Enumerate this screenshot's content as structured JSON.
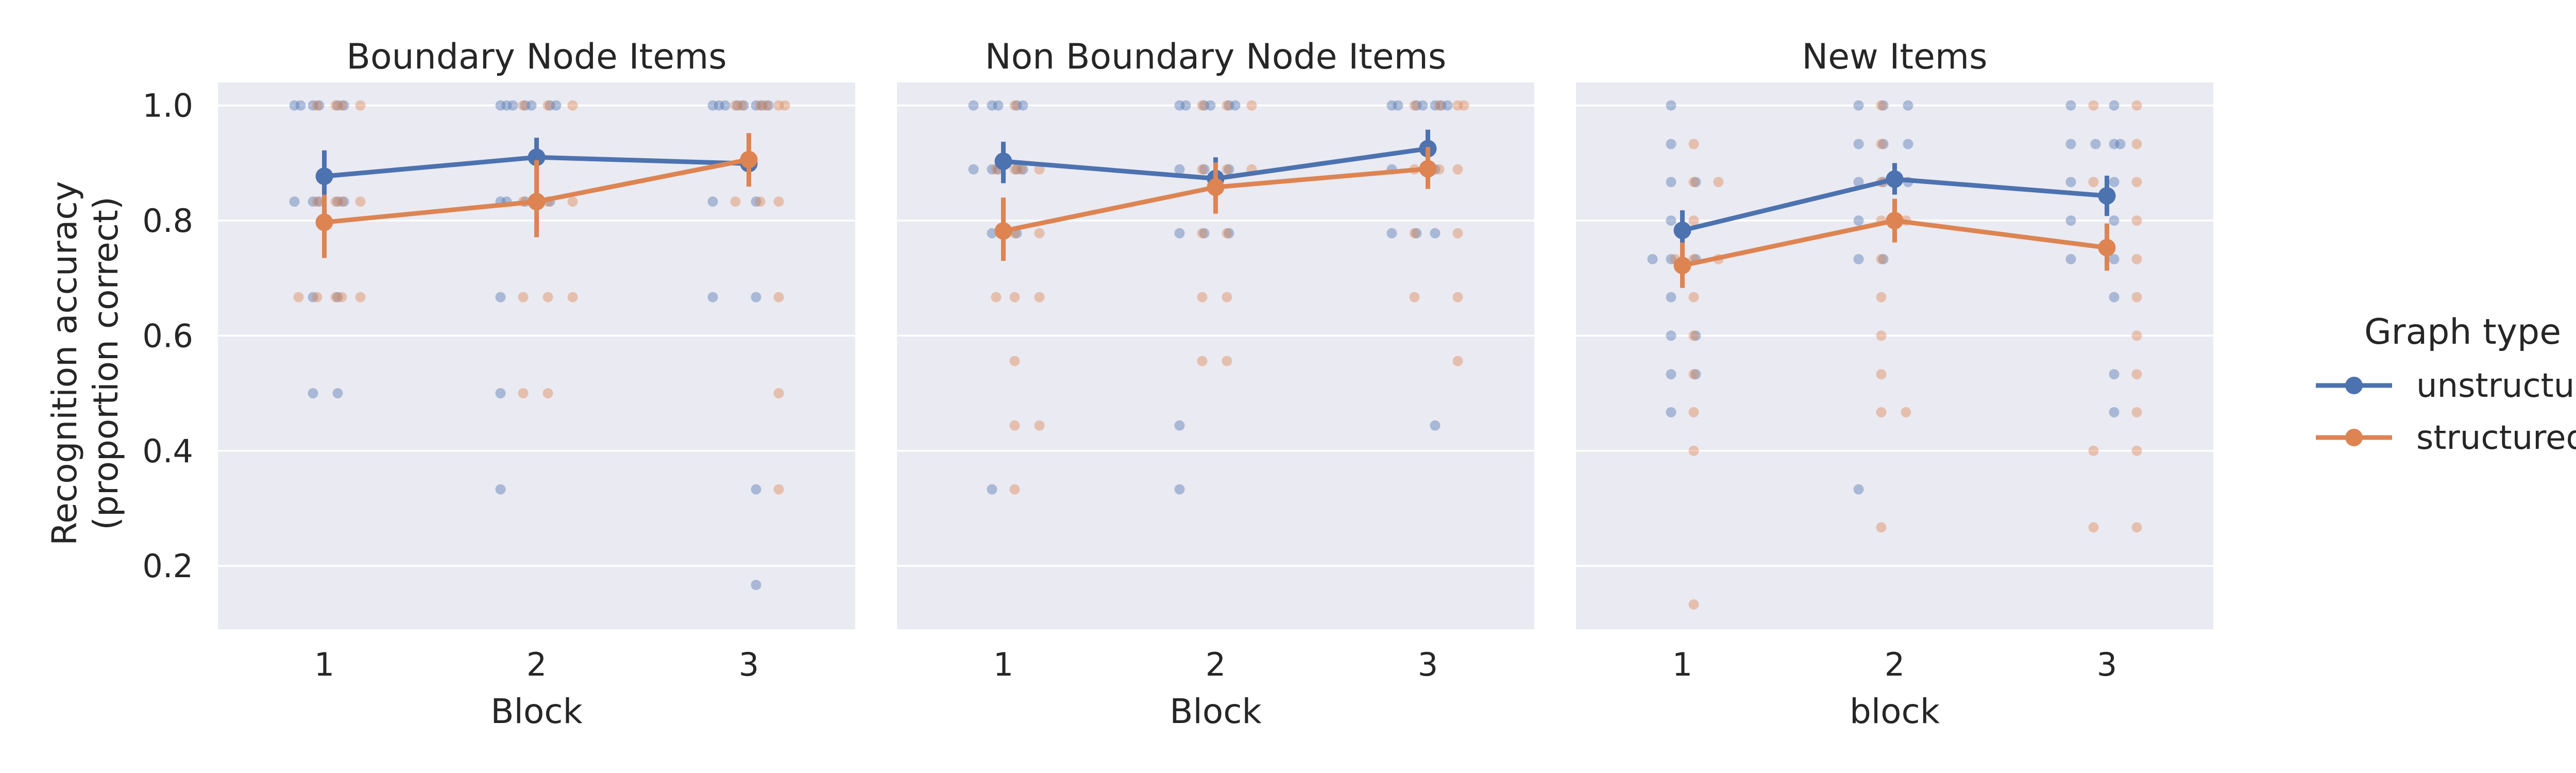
{
  "chart_data": [
    {
      "type": "scatter",
      "title": "Boundary Node Items",
      "xlabel": "Block",
      "ylabel": "Recognition accuracy\n(proportion correct)",
      "x_categories": [
        "1",
        "2",
        "3"
      ],
      "ylim": [
        0.09,
        1.04
      ],
      "yticks": [
        "0.2",
        "0.4",
        "0.6",
        "0.8",
        "1.0"
      ],
      "grid": true,
      "series": [
        {
          "name": "unstructured",
          "color": "#4C72B0",
          "means": [
            0.877,
            0.91,
            0.899
          ],
          "ci": [
            [
              0.833,
              0.922
            ],
            [
              0.876,
              0.944
            ],
            [
              0.862,
              0.93
            ]
          ],
          "points": [
            {
              "x": 1,
              "ys": [
                1.0,
                1.0,
                1.0,
                1.0,
                1.0,
                1.0,
                0.833,
                0.833,
                0.833,
                0.833,
                0.833,
                0.667,
                0.667,
                0.5,
                0.5
              ]
            },
            {
              "x": 2,
              "ys": [
                1.0,
                1.0,
                1.0,
                1.0,
                1.0,
                1.0,
                1.0,
                0.833,
                0.833,
                0.833,
                0.833,
                0.667,
                0.5,
                0.333
              ]
            },
            {
              "x": 3,
              "ys": [
                1.0,
                1.0,
                1.0,
                1.0,
                1.0,
                1.0,
                1.0,
                1.0,
                0.833,
                0.833,
                0.667,
                0.667,
                0.333,
                0.167
              ]
            }
          ]
        },
        {
          "name": "structured",
          "color": "#DD8452",
          "means": [
            0.797,
            0.833,
            0.906
          ],
          "ci": [
            [
              0.735,
              0.845
            ],
            [
              0.771,
              0.905
            ],
            [
              0.859,
              0.952
            ]
          ],
          "points": [
            {
              "x": 1,
              "ys": [
                1.0,
                1.0,
                1.0,
                1.0,
                0.833,
                0.833,
                0.833,
                0.833,
                0.667,
                0.667,
                0.667,
                0.667,
                0.667
              ]
            },
            {
              "x": 2,
              "ys": [
                1.0,
                1.0,
                1.0,
                0.833,
                0.833,
                0.833,
                0.667,
                0.667,
                0.667,
                0.5,
                0.5
              ]
            },
            {
              "x": 3,
              "ys": [
                1.0,
                1.0,
                1.0,
                1.0,
                1.0,
                1.0,
                0.833,
                0.833,
                0.833,
                0.667,
                0.5,
                0.333
              ]
            }
          ]
        }
      ]
    },
    {
      "type": "scatter",
      "title": "Non Boundary Node Items",
      "xlabel": "Block",
      "ylabel": "",
      "x_categories": [
        "1",
        "2",
        "3"
      ],
      "ylim": [
        0.09,
        1.04
      ],
      "grid": true,
      "series": [
        {
          "name": "unstructured",
          "color": "#4C72B0",
          "means": [
            0.903,
            0.873,
            0.925
          ],
          "ci": [
            [
              0.865,
              0.937
            ],
            [
              0.835,
              0.91
            ],
            [
              0.892,
              0.958
            ]
          ],
          "points": [
            {
              "x": 1,
              "ys": [
                1.0,
                1.0,
                1.0,
                1.0,
                1.0,
                0.889,
                0.889,
                0.889,
                0.889,
                0.889,
                0.778,
                0.778,
                0.333
              ]
            },
            {
              "x": 2,
              "ys": [
                1.0,
                1.0,
                1.0,
                1.0,
                1.0,
                1.0,
                0.889,
                0.889,
                0.889,
                0.778,
                0.778,
                0.778,
                0.444,
                0.333
              ]
            },
            {
              "x": 3,
              "ys": [
                1.0,
                1.0,
                1.0,
                1.0,
                1.0,
                1.0,
                1.0,
                0.889,
                0.889,
                0.778,
                0.778,
                0.778,
                0.444
              ]
            }
          ]
        },
        {
          "name": "structured",
          "color": "#DD8452",
          "means": [
            0.782,
            0.858,
            0.89
          ],
          "ci": [
            [
              0.73,
              0.84
            ],
            [
              0.812,
              0.901
            ],
            [
              0.855,
              0.928
            ]
          ],
          "points": [
            {
              "x": 1,
              "ys": [
                1.0,
                0.889,
                0.889,
                0.889,
                0.889,
                0.778,
                0.778,
                0.667,
                0.667,
                0.667,
                0.556,
                0.444,
                0.444,
                0.333
              ]
            },
            {
              "x": 2,
              "ys": [
                1.0,
                1.0,
                1.0,
                0.889,
                0.889,
                0.889,
                0.778,
                0.778,
                0.667,
                0.667,
                0.556,
                0.556
              ]
            },
            {
              "x": 3,
              "ys": [
                1.0,
                1.0,
                1.0,
                1.0,
                0.889,
                0.889,
                0.889,
                0.778,
                0.778,
                0.667,
                0.667,
                0.556
              ]
            }
          ]
        }
      ]
    },
    {
      "type": "scatter",
      "title": "New Items",
      "xlabel": "block",
      "ylabel": "",
      "x_categories": [
        "1",
        "2",
        "3"
      ],
      "ylim": [
        0.09,
        1.04
      ],
      "grid": true,
      "series": [
        {
          "name": "unstructured",
          "color": "#4C72B0",
          "means": [
            0.783,
            0.872,
            0.843
          ],
          "ci": [
            [
              0.748,
              0.818
            ],
            [
              0.845,
              0.9
            ],
            [
              0.808,
              0.878
            ]
          ],
          "points": [
            {
              "x": 1,
              "ys": [
                1.0,
                0.933,
                0.867,
                0.867,
                0.8,
                0.733,
                0.733,
                0.733,
                0.667,
                0.6,
                0.6,
                0.533,
                0.533,
                0.467
              ]
            },
            {
              "x": 2,
              "ys": [
                1.0,
                1.0,
                1.0,
                0.933,
                0.933,
                0.933,
                0.867,
                0.867,
                0.867,
                0.8,
                0.733,
                0.733,
                0.333
              ]
            },
            {
              "x": 3,
              "ys": [
                1.0,
                1.0,
                0.933,
                0.933,
                0.933,
                0.933,
                0.867,
                0.867,
                0.8,
                0.8,
                0.733,
                0.733,
                0.667,
                0.533,
                0.467
              ]
            }
          ]
        },
        {
          "name": "structured",
          "color": "#DD8452",
          "means": [
            0.722,
            0.8,
            0.753
          ],
          "ci": [
            [
              0.683,
              0.762
            ],
            [
              0.762,
              0.838
            ],
            [
              0.713,
              0.795
            ]
          ],
          "points": [
            {
              "x": 1,
              "ys": [
                0.933,
                0.867,
                0.867,
                0.8,
                0.733,
                0.733,
                0.733,
                0.667,
                0.6,
                0.533,
                0.467,
                0.4,
                0.133
              ]
            },
            {
              "x": 2,
              "ys": [
                1.0,
                0.933,
                0.867,
                0.8,
                0.8,
                0.733,
                0.667,
                0.6,
                0.533,
                0.467,
                0.467,
                0.267
              ]
            },
            {
              "x": 3,
              "ys": [
                1.0,
                1.0,
                0.933,
                0.867,
                0.867,
                0.8,
                0.733,
                0.667,
                0.6,
                0.533,
                0.467,
                0.4,
                0.4,
                0.267,
                0.267
              ]
            }
          ]
        }
      ]
    }
  ],
  "legend": {
    "title": "Graph type",
    "placement": "right",
    "items": [
      {
        "label": "unstructured",
        "color": "#4C72B0"
      },
      {
        "label": "structured",
        "color": "#DD8452"
      }
    ]
  }
}
